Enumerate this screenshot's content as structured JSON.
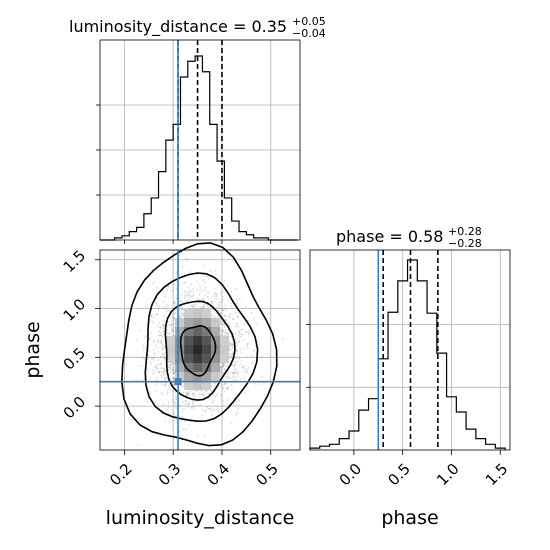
{
  "chart_data": {
    "type": "corner",
    "parameters": [
      "luminosity_distance",
      "phase"
    ],
    "truth": {
      "luminosity_distance": 0.31,
      "phase": 0.25
    },
    "titles": [
      {
        "base": "luminosity_distance = 0.35",
        "sup": "+0.05",
        "sub": "−0.04"
      },
      {
        "base": "phase = 0.58",
        "sup": "+0.28",
        "sub": "−0.28"
      }
    ],
    "axis_labels": {
      "x1": "luminosity_distance",
      "x2": "phase",
      "y2": "phase"
    },
    "ranges": {
      "luminosity_distance": [
        0.15,
        0.56
      ],
      "phase": [
        -0.45,
        1.6
      ]
    },
    "ticks": {
      "luminosity_distance": [
        "0.2",
        "0.3",
        "0.4",
        "0.5"
      ],
      "phase": [
        "0.0",
        "0.5",
        "1.0",
        "1.5"
      ]
    },
    "grid": true,
    "hist_luminosity_distance": {
      "bin_edges": [
        0.15,
        0.165,
        0.18,
        0.195,
        0.21,
        0.225,
        0.24,
        0.255,
        0.27,
        0.285,
        0.3,
        0.315,
        0.33,
        0.345,
        0.36,
        0.375,
        0.39,
        0.405,
        0.42,
        0.435,
        0.45,
        0.465,
        0.48,
        0.495,
        0.51,
        0.525,
        0.54,
        0.555
      ],
      "counts": [
        0,
        0,
        2,
        4,
        8,
        12,
        25,
        40,
        65,
        95,
        110,
        155,
        170,
        175,
        160,
        110,
        75,
        40,
        18,
        8,
        5,
        2,
        2,
        0,
        0,
        0,
        0
      ],
      "quantiles": [
        0.31,
        0.35,
        0.4
      ]
    },
    "hist_phase": {
      "bin_edges": [
        -0.45,
        -0.35,
        -0.25,
        -0.15,
        -0.05,
        0.05,
        0.15,
        0.25,
        0.35,
        0.45,
        0.55,
        0.65,
        0.75,
        0.85,
        0.95,
        1.05,
        1.15,
        1.25,
        1.35,
        1.45,
        1.55
      ],
      "counts": [
        2,
        4,
        6,
        12,
        20,
        42,
        54,
        96,
        145,
        178,
        200,
        178,
        144,
        102,
        56,
        40,
        22,
        12,
        6,
        2
      ],
      "quantiles": [
        0.3,
        0.58,
        0.86
      ]
    },
    "density_center": {
      "luminosity_distance": 0.35,
      "phase": 0.58
    },
    "contour_levels": 4
  }
}
